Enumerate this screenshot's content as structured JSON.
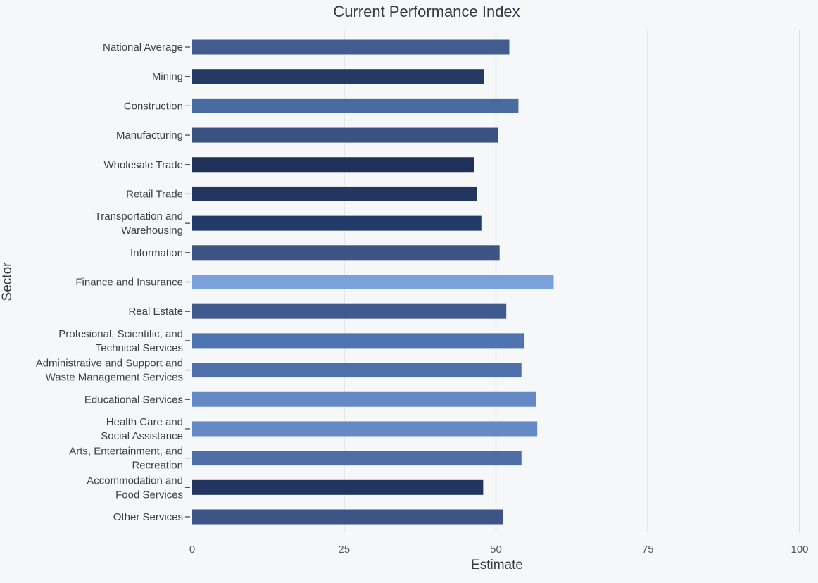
{
  "chart_data": {
    "type": "bar",
    "orientation": "horizontal",
    "title": "Current Performance Index",
    "xlabel": "Estimate",
    "ylabel": "Sector",
    "xlim": [
      0,
      100
    ],
    "xticks": [
      0,
      25,
      50,
      75,
      100
    ],
    "grid": true,
    "legend": "none",
    "categories": [
      "National Average",
      "Mining",
      "Construction",
      "Manufacturing",
      "Wholesale Trade",
      "Retail Trade",
      "Transportation and Warehousing",
      "Information",
      "Finance and Insurance",
      "Real Estate",
      "Profesional, Scientific, and Technical Services",
      "Administrative and Support and Waste Management Services",
      "Educational Services",
      "Health Care and Social Assistance",
      "Arts, Entertainment, and Recreation",
      "Accommodation and Food Services",
      "Other Services"
    ],
    "label_lines": [
      [
        "National Average"
      ],
      [
        "Mining"
      ],
      [
        "Construction"
      ],
      [
        "Manufacturing"
      ],
      [
        "Wholesale Trade"
      ],
      [
        "Retail Trade"
      ],
      [
        "Transportation and",
        "Warehousing"
      ],
      [
        "Information"
      ],
      [
        "Finance and Insurance"
      ],
      [
        "Real Estate"
      ],
      [
        "Profesional, Scientific, and",
        "Technical Services"
      ],
      [
        "Administrative and Support and",
        "Waste Management Services"
      ],
      [
        "Educational Services"
      ],
      [
        "Health Care and",
        "Social Assistance"
      ],
      [
        "Arts, Entertainment, and",
        "Recreation"
      ],
      [
        "Accommodation and",
        "Food Services"
      ],
      [
        "Other Services"
      ]
    ],
    "values": [
      52.2,
      48.0,
      53.7,
      50.4,
      46.4,
      46.9,
      47.6,
      50.6,
      59.5,
      51.7,
      54.7,
      54.2,
      56.6,
      56.8,
      54.2,
      47.9,
      51.2
    ],
    "colors": [
      "#425c8e",
      "#253965",
      "#4a6aa2",
      "#3a5282",
      "#1f3158",
      "#22365f",
      "#243a66",
      "#3c5484",
      "#7ba1dd",
      "#3f5a8c",
      "#5074af",
      "#4f70aa",
      "#6489c4",
      "#6588c6",
      "#4e6ea8",
      "#22355e",
      "#3d5586"
    ]
  }
}
